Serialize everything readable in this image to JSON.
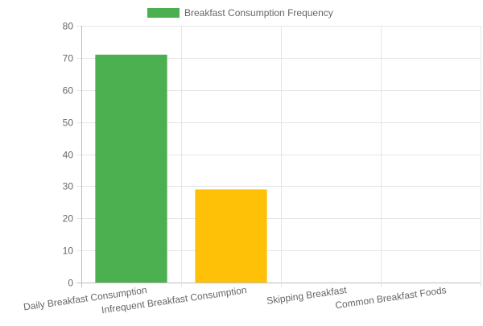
{
  "chart_data": {
    "type": "bar",
    "categories": [
      "Daily Breakfast Consumption",
      "Infrequent Breakfast Consumption",
      "Skipping Breakfast",
      "Common Breakfast Foods"
    ],
    "series": [
      {
        "name": "Breakfast Consumption Frequency",
        "values": [
          71,
          29,
          0,
          0
        ],
        "colors": [
          "#4caf50",
          "#ffc107",
          "#4caf50",
          "#4caf50"
        ]
      }
    ],
    "ylim": [
      0,
      80
    ],
    "yticks": [
      0,
      10,
      20,
      30,
      40,
      50,
      60,
      70,
      80
    ],
    "grid": true,
    "legend_position": "top",
    "legend_color": "#4caf50"
  }
}
